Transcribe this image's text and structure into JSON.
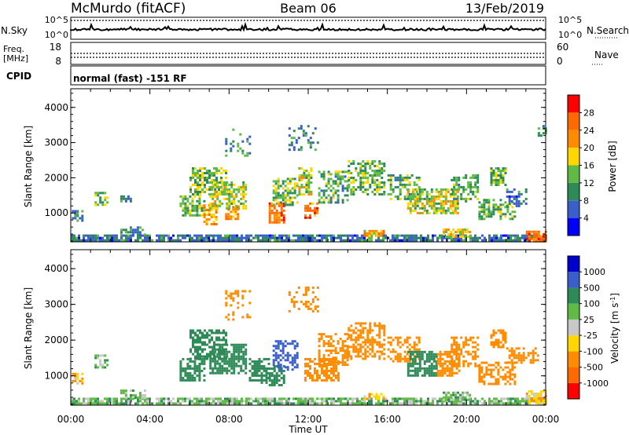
{
  "header": {
    "station": "McMurdo (fitACF)",
    "beam": "Beam 06",
    "date": "13/Feb/2019"
  },
  "noise_panel": {
    "left_label": "N.Sky",
    "right_label": "N.Search",
    "left_ticks": [
      "10^5",
      "10^0"
    ],
    "right_ticks": [
      "10^5",
      "10^0"
    ]
  },
  "freq_panel": {
    "left_label_1": "Freq.",
    "left_label_2": "[MHz]",
    "right_label": "Nave",
    "left_ticks": [
      "18",
      "8"
    ],
    "right_ticks": [
      "60",
      "0"
    ],
    "cpid_label": "CPID",
    "cpid_text": "normal (fast) -151 RF"
  },
  "colors": {
    "power": [
      "#0000ff",
      "#3a5fcd",
      "#2e8b57",
      "#5fba46",
      "#ffd700",
      "#ff8c00",
      "#ff6a00",
      "#ff0000"
    ],
    "velocity": [
      "#ff0000",
      "#ff6a00",
      "#ff8c00",
      "#ffd700",
      "#c8c8c8",
      "#5fba46",
      "#2e8b57",
      "#3a5fcd",
      "#0000cd"
    ],
    "ground_scatter": "#c8c8c8"
  },
  "chart_data": [
    {
      "type": "heatmap",
      "name": "power",
      "x_field": "time_ut",
      "y_field": "slant_range_km",
      "ylabel": "Slant Range [km]",
      "ylim": [
        180,
        4530
      ],
      "yticks": [
        1000,
        2000,
        3000,
        4000
      ],
      "xlim": [
        0,
        24
      ],
      "colorbar": {
        "label": "Power [dB]",
        "levels": [
          0,
          4,
          8,
          12,
          16,
          20,
          24,
          28,
          32
        ],
        "tick_labels": [
          "4",
          "8",
          "12",
          "16",
          "20",
          "24",
          "28"
        ]
      },
      "regions": [
        {
          "t0": 0.0,
          "t1": 24.0,
          "r0": 220,
          "r1": 390,
          "value": 8,
          "density": 0.8
        },
        {
          "t0": 0.05,
          "t1": 0.6,
          "r0": 800,
          "r1": 1150,
          "value": 10,
          "density": 0.6
        },
        {
          "t0": 1.2,
          "t1": 1.9,
          "r0": 1250,
          "r1": 1600,
          "value": 13,
          "density": 0.6
        },
        {
          "t0": 2.5,
          "t1": 3.0,
          "r0": 1350,
          "r1": 1500,
          "value": 9,
          "density": 0.6
        },
        {
          "t0": 2.5,
          "t1": 3.8,
          "r0": 400,
          "r1": 620,
          "value": 10,
          "density": 0.5
        },
        {
          "t0": 5.5,
          "t1": 6.8,
          "r0": 900,
          "r1": 1500,
          "value": 14,
          "density": 0.6
        },
        {
          "t0": 6.0,
          "t1": 7.8,
          "r0": 1500,
          "r1": 2300,
          "value": 14,
          "density": 0.6
        },
        {
          "t0": 6.7,
          "t1": 7.3,
          "r0": 700,
          "r1": 1250,
          "value": 22,
          "density": 0.7
        },
        {
          "t0": 7.0,
          "t1": 8.8,
          "r0": 1100,
          "r1": 1900,
          "value": 16,
          "density": 0.6
        },
        {
          "t0": 7.8,
          "t1": 8.4,
          "r0": 800,
          "r1": 1200,
          "value": 22,
          "density": 0.7
        },
        {
          "t0": 7.8,
          "t1": 9.0,
          "r0": 2600,
          "r1": 3400,
          "value": 10,
          "density": 0.35
        },
        {
          "t0": 10.0,
          "t1": 10.8,
          "r0": 750,
          "r1": 1300,
          "value": 24,
          "density": 0.7
        },
        {
          "t0": 10.2,
          "t1": 11.4,
          "r0": 1200,
          "r1": 2000,
          "value": 14,
          "density": 0.6
        },
        {
          "t0": 11.0,
          "t1": 12.5,
          "r0": 2800,
          "r1": 3500,
          "value": 9,
          "density": 0.3
        },
        {
          "t0": 11.5,
          "t1": 12.2,
          "r0": 1500,
          "r1": 2300,
          "value": 16,
          "density": 0.6
        },
        {
          "t0": 11.8,
          "t1": 12.4,
          "r0": 850,
          "r1": 1300,
          "value": 24,
          "density": 0.7
        },
        {
          "t0": 12.5,
          "t1": 14.0,
          "r0": 1300,
          "r1": 2200,
          "value": 12,
          "density": 0.5
        },
        {
          "t0": 14.0,
          "t1": 15.8,
          "r0": 1500,
          "r1": 2500,
          "value": 13,
          "density": 0.5
        },
        {
          "t0": 14.8,
          "t1": 15.8,
          "r0": 350,
          "r1": 520,
          "value": 20,
          "density": 0.7
        },
        {
          "t0": 16.0,
          "t1": 17.6,
          "r0": 1400,
          "r1": 2100,
          "value": 12,
          "density": 0.5
        },
        {
          "t0": 17.0,
          "t1": 19.6,
          "r0": 1000,
          "r1": 1700,
          "value": 16,
          "density": 0.7
        },
        {
          "t0": 18.8,
          "t1": 20.2,
          "r0": 350,
          "r1": 560,
          "value": 19,
          "density": 0.7
        },
        {
          "t0": 19.2,
          "t1": 20.6,
          "r0": 1300,
          "r1": 2100,
          "value": 12,
          "density": 0.5
        },
        {
          "t0": 20.6,
          "t1": 22.5,
          "r0": 800,
          "r1": 1400,
          "value": 13,
          "density": 0.5
        },
        {
          "t0": 21.2,
          "t1": 22.0,
          "r0": 1800,
          "r1": 2300,
          "value": 14,
          "density": 0.6
        },
        {
          "t0": 22.0,
          "t1": 23.0,
          "r0": 1200,
          "r1": 1700,
          "value": 8,
          "density": 0.5
        },
        {
          "t0": 23.0,
          "t1": 24.0,
          "r0": 220,
          "r1": 500,
          "value": 25,
          "density": 0.8
        },
        {
          "t0": 23.6,
          "t1": 24.0,
          "r0": 3200,
          "r1": 3500,
          "value": 10,
          "density": 0.5
        }
      ]
    },
    {
      "type": "heatmap",
      "name": "velocity",
      "x_field": "time_ut",
      "y_field": "slant_range_km",
      "ylabel": "Slant Range [km]",
      "xlabel": "Time UT",
      "xticks": [
        "00:00",
        "04:00",
        "08:00",
        "12:00",
        "16:00",
        "20:00",
        "00:00"
      ],
      "ylim": [
        180,
        4530
      ],
      "yticks": [
        1000,
        2000,
        3000,
        4000
      ],
      "xlim": [
        0,
        24
      ],
      "colorbar": {
        "label": "Velocity [m s^-1]",
        "levels": [
          -1500,
          -1000,
          -500,
          -100,
          -25,
          25,
          100,
          500,
          1000,
          1500
        ],
        "tick_labels": [
          "-1000",
          "-500",
          "-100",
          "-25",
          "25",
          "100",
          "500",
          "1000"
        ]
      },
      "regions": [
        {
          "t0": 0.0,
          "t1": 24.0,
          "r0": 220,
          "r1": 390,
          "value": 60,
          "density": 0.8
        },
        {
          "t0": 0.05,
          "t1": 0.6,
          "r0": 800,
          "r1": 1150,
          "value": -70,
          "density": 0.6
        },
        {
          "t0": 1.2,
          "t1": 1.9,
          "r0": 1250,
          "r1": 1600,
          "value": 60,
          "density": 0.6
        },
        {
          "t0": 2.5,
          "t1": 3.8,
          "r0": 400,
          "r1": 620,
          "value": 60,
          "density": 0.5
        },
        {
          "t0": 5.5,
          "t1": 6.8,
          "r0": 900,
          "r1": 1500,
          "value": 300,
          "density": 0.6
        },
        {
          "t0": 6.0,
          "t1": 7.8,
          "r0": 1500,
          "r1": 2300,
          "value": 300,
          "density": 0.6
        },
        {
          "t0": 7.0,
          "t1": 8.8,
          "r0": 1100,
          "r1": 1900,
          "value": 300,
          "density": 0.7
        },
        {
          "t0": 7.8,
          "t1": 9.0,
          "r0": 2600,
          "r1": 3400,
          "value": -300,
          "density": 0.35
        },
        {
          "t0": 9.0,
          "t1": 10.0,
          "r0": 800,
          "r1": 1500,
          "value": 300,
          "density": 0.6
        },
        {
          "t0": 10.0,
          "t1": 10.8,
          "r0": 750,
          "r1": 1300,
          "value": 300,
          "density": 0.7
        },
        {
          "t0": 10.2,
          "t1": 11.4,
          "r0": 1200,
          "r1": 2000,
          "value": 700,
          "density": 0.5
        },
        {
          "t0": 11.0,
          "t1": 12.5,
          "r0": 2800,
          "r1": 3500,
          "value": -200,
          "density": 0.3
        },
        {
          "t0": 11.8,
          "t1": 13.5,
          "r0": 900,
          "r1": 1500,
          "value": -300,
          "density": 0.7
        },
        {
          "t0": 12.5,
          "t1": 14.0,
          "r0": 1300,
          "r1": 2200,
          "value": -300,
          "density": 0.5
        },
        {
          "t0": 14.0,
          "t1": 15.8,
          "r0": 1500,
          "r1": 2500,
          "value": -200,
          "density": 0.5
        },
        {
          "t0": 14.8,
          "t1": 15.8,
          "r0": 350,
          "r1": 520,
          "value": -60,
          "density": 0.7
        },
        {
          "t0": 16.0,
          "t1": 17.6,
          "r0": 1400,
          "r1": 2100,
          "value": -200,
          "density": 0.5
        },
        {
          "t0": 17.0,
          "t1": 18.5,
          "r0": 1000,
          "r1": 1700,
          "value": 300,
          "density": 0.7
        },
        {
          "t0": 18.5,
          "t1": 19.6,
          "r0": 1000,
          "r1": 1700,
          "value": -300,
          "density": 0.7
        },
        {
          "t0": 18.8,
          "t1": 20.2,
          "r0": 350,
          "r1": 560,
          "value": 60,
          "density": 0.7
        },
        {
          "t0": 19.2,
          "t1": 20.6,
          "r0": 1300,
          "r1": 2100,
          "value": -200,
          "density": 0.5
        },
        {
          "t0": 20.6,
          "t1": 22.5,
          "r0": 800,
          "r1": 1400,
          "value": -300,
          "density": 0.5
        },
        {
          "t0": 21.2,
          "t1": 22.0,
          "r0": 1800,
          "r1": 2300,
          "value": -200,
          "density": 0.6
        },
        {
          "t0": 22.0,
          "t1": 23.6,
          "r0": 1400,
          "r1": 1800,
          "value": -200,
          "density": 0.5
        },
        {
          "t0": 23.0,
          "t1": 24.0,
          "r0": 220,
          "r1": 600,
          "value": -70,
          "density": 0.8
        }
      ]
    }
  ]
}
